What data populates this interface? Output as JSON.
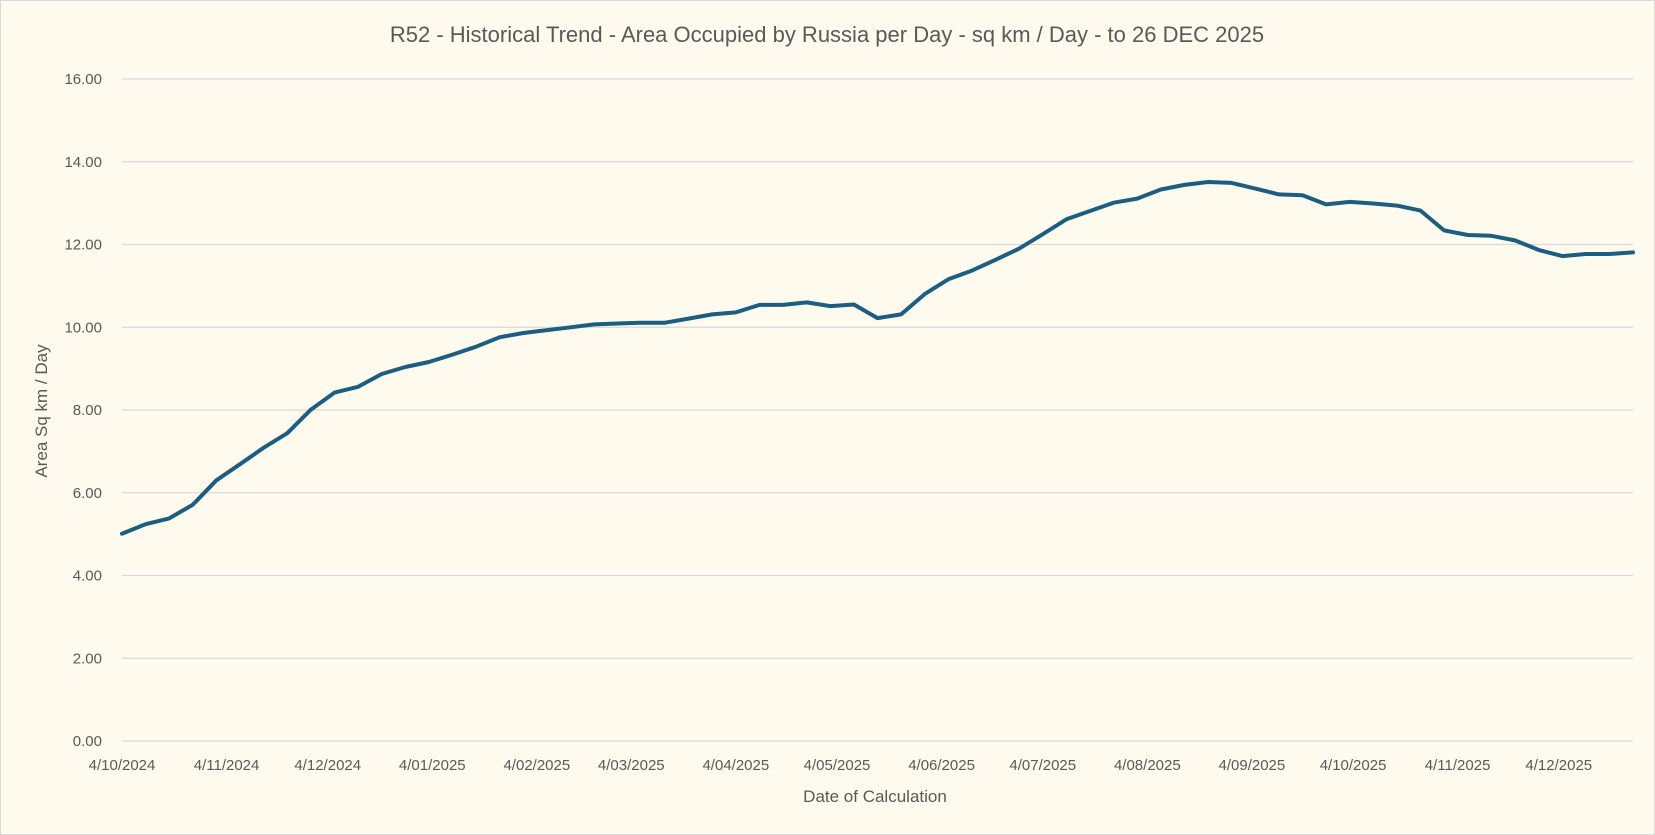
{
  "colors": {
    "background": "#fefaee",
    "series": "#1b5e82",
    "gridline": "#d9d9d9",
    "text": "#595959"
  },
  "chart_data": {
    "type": "line",
    "title": "R52 - Historical Trend - Area Occupied by Russia per Day - sq km / Day - to 26 DEC 2025",
    "xlabel": "Date of Calculation",
    "ylabel": "Area Sq km / Day",
    "ylim": [
      0,
      16
    ],
    "xlim": [
      "2024-10-04",
      "2025-12-26"
    ],
    "grid": true,
    "legend": "none",
    "y_ticks": [
      "0.00",
      "2.00",
      "4.00",
      "6.00",
      "8.00",
      "10.00",
      "12.00",
      "14.00",
      "16.00"
    ],
    "x_ticks": [
      {
        "date": "2024-10-04",
        "label": "4/10/2024"
      },
      {
        "date": "2024-11-04",
        "label": "4/11/2024"
      },
      {
        "date": "2024-12-04",
        "label": "4/12/2024"
      },
      {
        "date": "2025-01-04",
        "label": "4/01/2025"
      },
      {
        "date": "2025-02-04",
        "label": "4/02/2025"
      },
      {
        "date": "2025-03-04",
        "label": "4/03/2025"
      },
      {
        "date": "2025-04-04",
        "label": "4/04/2025"
      },
      {
        "date": "2025-05-04",
        "label": "4/05/2025"
      },
      {
        "date": "2025-06-04",
        "label": "4/06/2025"
      },
      {
        "date": "2025-07-04",
        "label": "4/07/2025"
      },
      {
        "date": "2025-08-04",
        "label": "4/08/2025"
      },
      {
        "date": "2025-09-04",
        "label": "4/09/2025"
      },
      {
        "date": "2025-10-04",
        "label": "4/10/2025"
      },
      {
        "date": "2025-11-04",
        "label": "4/11/2025"
      },
      {
        "date": "2025-12-04",
        "label": "4/12/2025"
      }
    ],
    "series": [
      {
        "x": [
          "2024-10-04",
          "2024-10-11",
          "2024-10-18",
          "2024-10-25",
          "2024-11-01",
          "2024-11-08",
          "2024-11-15",
          "2024-11-22",
          "2024-11-29",
          "2024-12-06",
          "2024-12-13",
          "2024-12-20",
          "2024-12-27",
          "2025-01-03",
          "2025-01-10",
          "2025-01-17",
          "2025-01-24",
          "2025-01-31",
          "2025-02-07",
          "2025-02-14",
          "2025-02-21",
          "2025-02-28",
          "2025-03-07",
          "2025-03-14",
          "2025-03-21",
          "2025-03-28",
          "2025-04-04",
          "2025-04-11",
          "2025-04-18",
          "2025-04-25",
          "2025-05-02",
          "2025-05-09",
          "2025-05-16",
          "2025-05-23",
          "2025-05-30",
          "2025-06-06",
          "2025-06-13",
          "2025-06-20",
          "2025-06-27",
          "2025-07-04",
          "2025-07-11",
          "2025-07-18",
          "2025-07-25",
          "2025-08-01",
          "2025-08-08",
          "2025-08-15",
          "2025-08-22",
          "2025-08-29",
          "2025-09-05",
          "2025-09-12",
          "2025-09-19",
          "2025-09-26",
          "2025-10-03",
          "2025-10-10",
          "2025-10-17",
          "2025-10-24",
          "2025-10-31",
          "2025-11-07",
          "2025-11-14",
          "2025-11-21",
          "2025-11-28",
          "2025-12-05",
          "2025-12-12",
          "2025-12-19",
          "2025-12-26"
        ],
        "values": [
          5.01,
          5.24,
          5.38,
          5.71,
          6.3,
          6.69,
          7.09,
          7.44,
          8.01,
          8.42,
          8.56,
          8.87,
          9.04,
          9.16,
          9.34,
          9.53,
          9.76,
          9.86,
          9.93,
          10.0,
          10.07,
          10.09,
          10.11,
          10.11,
          10.21,
          10.31,
          10.36,
          10.54,
          10.54,
          10.6,
          10.51,
          10.55,
          10.22,
          10.31,
          10.8,
          11.16,
          11.37,
          11.63,
          11.9,
          12.25,
          12.61,
          12.81,
          13.01,
          13.11,
          13.33,
          13.44,
          13.51,
          13.49,
          13.35,
          13.21,
          13.19,
          12.97,
          13.03,
          12.99,
          12.94,
          12.82,
          12.34,
          12.23,
          12.21,
          12.1,
          11.87,
          11.72,
          11.77,
          11.77,
          11.81
        ]
      }
    ]
  }
}
